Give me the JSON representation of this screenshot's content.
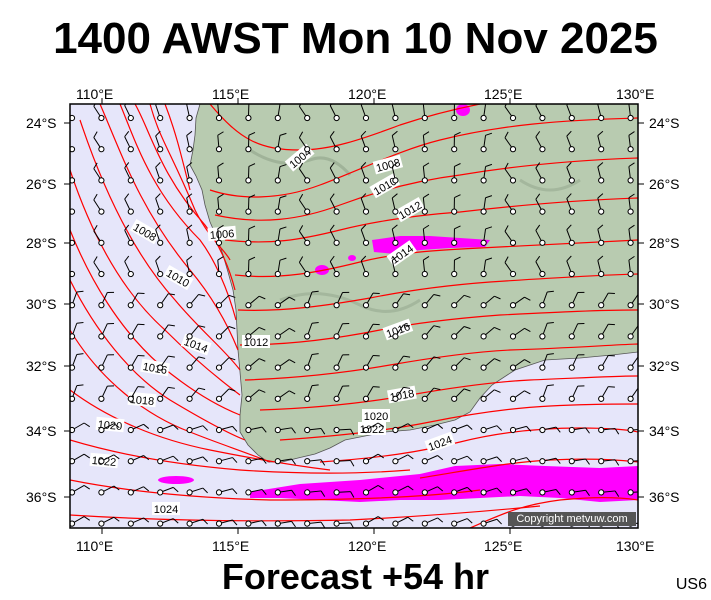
{
  "title": "1400 AWST Mon 10 Nov 2025",
  "footer": "Forecast +54 hr",
  "model_code": "US6",
  "copyright": "Copyright metvuw.com",
  "lon_ticks": [
    "110°E",
    "115°E",
    "120°E",
    "125°E",
    "130°E"
  ],
  "lat_ticks": [
    "24°S",
    "26°S",
    "28°S",
    "30°S",
    "32°S",
    "34°S",
    "36°S"
  ],
  "isobar_labels": [
    "1004",
    "1008",
    "1010",
    "1012",
    "1006",
    "1008",
    "1010",
    "1014",
    "1014",
    "1012",
    "1016",
    "1016",
    "1018",
    "1018",
    "1020",
    "1020",
    "1022",
    "1022",
    "1024",
    "1024"
  ],
  "colors": {
    "ocean": "#e6e6fa",
    "land": "#b8cbb0",
    "isobar": "#ff0000",
    "rain": "#ff00ff",
    "wind": "#000000"
  }
}
